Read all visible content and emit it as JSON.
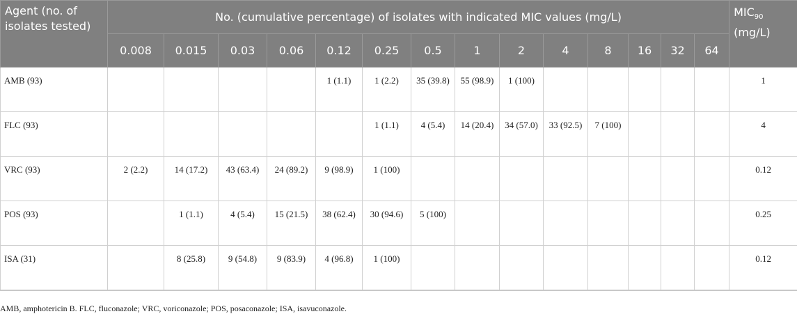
{
  "header": {
    "agent": "Agent (no. of isolates tested)",
    "span": "No. (cumulative percentage) of isolates with indicated MIC values (mg/L)",
    "mic90_main": "MIC",
    "mic90_sub": "90",
    "mic90_unit": "(mg/L)",
    "mics": [
      "0.008",
      "0.015",
      "0.03",
      "0.06",
      "0.12",
      "0.25",
      "0.5",
      "1",
      "2",
      "4",
      "8",
      "16",
      "32",
      "64"
    ]
  },
  "rows": [
    {
      "agent": "AMB (93)",
      "cells": [
        "",
        "",
        "",
        "",
        "1 (1.1)",
        "1 (2.2)",
        "35 (39.8)",
        "55 (98.9)",
        "1 (100)",
        "",
        "",
        "",
        "",
        ""
      ],
      "mic90": "1"
    },
    {
      "agent": "FLC (93)",
      "cells": [
        "",
        "",
        "",
        "",
        "",
        "1 (1.1)",
        "4 (5.4)",
        "14 (20.4)",
        "34 (57.0)",
        "33 (92.5)",
        "7 (100)",
        "",
        "",
        ""
      ],
      "mic90": "4"
    },
    {
      "agent": "VRC (93)",
      "cells": [
        "2 (2.2)",
        "14 (17.2)",
        "43 (63.4)",
        "24 (89.2)",
        "9 (98.9)",
        "1 (100)",
        "",
        "",
        "",
        "",
        "",
        "",
        "",
        ""
      ],
      "mic90": "0.12"
    },
    {
      "agent": "POS (93)",
      "cells": [
        "",
        "1 (1.1)",
        "4 (5.4)",
        "15 (21.5)",
        "38 (62.4)",
        "30 (94.6)",
        "5 (100)",
        "",
        "",
        "",
        "",
        "",
        "",
        ""
      ],
      "mic90": "0.25"
    },
    {
      "agent": "ISA (31)",
      "cells": [
        "",
        "8 (25.8)",
        "9 (54.8)",
        "9 (83.9)",
        "4 (96.8)",
        "1 (100)",
        "",
        "",
        "",
        "",
        "",
        "",
        "",
        ""
      ],
      "mic90": "0.12"
    }
  ],
  "footnote": "AMB, amphotericin B. FLC, fluconazole; VRC, voriconazole; POS, posaconazole; ISA, isavuconazole."
}
